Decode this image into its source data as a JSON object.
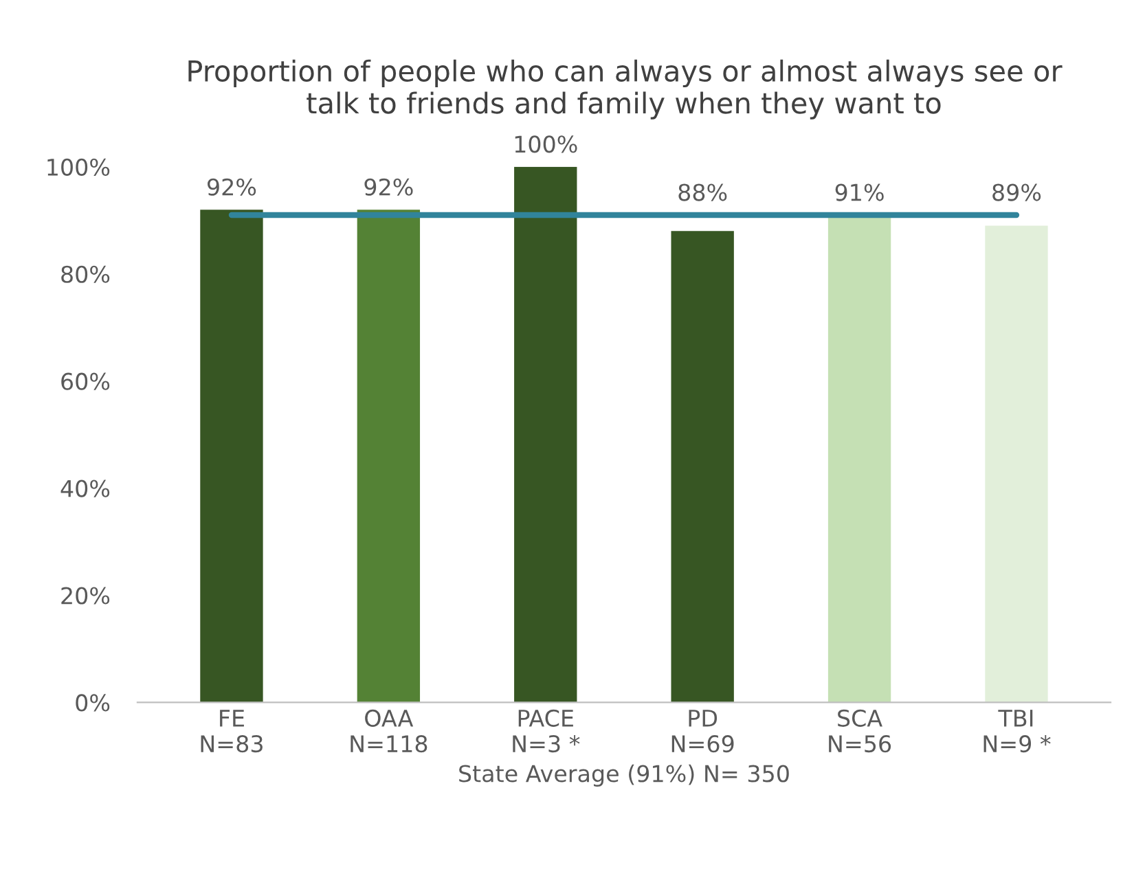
{
  "chart_data": {
    "type": "bar",
    "title": "Proportion of people who can always or almost always see or\ntalk to friends and family when they want to",
    "categories": [
      "FE\nN=83",
      "OAA\nN=118",
      "PACE\nN=3 *",
      "PD\nN=69",
      "SCA\nN=56",
      "TBI\nN=9 *"
    ],
    "values": [
      92,
      92,
      100,
      88,
      91,
      89
    ],
    "value_labels": [
      "92%",
      "92%",
      "100%",
      "88%",
      "91%",
      "89%"
    ],
    "colors": [
      "#375623",
      "#548235",
      "#375623",
      "#375623",
      "#c5e0b4",
      "#e2efda"
    ],
    "xlabel": "State Average (91%) N= 350",
    "ylim": [
      0,
      100
    ],
    "yticks": [
      {
        "value": 0,
        "label": "0%"
      },
      {
        "value": 20,
        "label": "20%"
      },
      {
        "value": 40,
        "label": "40%"
      },
      {
        "value": 60,
        "label": "60%"
      },
      {
        "value": 80,
        "label": "80%"
      },
      {
        "value": 100,
        "label": "100%"
      }
    ],
    "ref_lines": [
      {
        "axis": "y",
        "value": 91,
        "color": "#31849b"
      }
    ],
    "grid": false
  }
}
